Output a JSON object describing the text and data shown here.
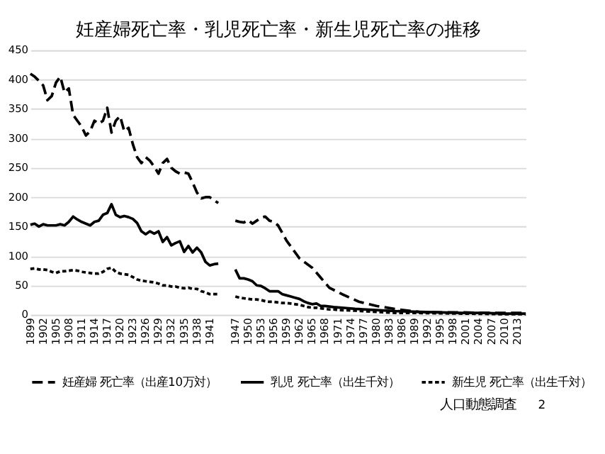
{
  "chart_data": {
    "type": "line",
    "title": "妊産婦死亡率・乳児死亡率・新生児死亡率の推移",
    "xlim": [
      1899,
      2015
    ],
    "xticks": [
      1899,
      1902,
      1905,
      1908,
      1911,
      1914,
      1917,
      1920,
      1923,
      1926,
      1929,
      1932,
      1935,
      1938,
      1941,
      1947,
      1950,
      1953,
      1956,
      1959,
      1962,
      1965,
      1968,
      1971,
      1974,
      1977,
      1980,
      1983,
      1986,
      1989,
      1992,
      1995,
      1998,
      2001,
      2004,
      2007,
      2010,
      2013
    ],
    "ylim": [
      0,
      450
    ],
    "yticks": [
      0,
      50,
      100,
      150,
      200,
      250,
      300,
      350,
      400,
      450
    ],
    "grid": "y",
    "legend": "bottom",
    "marker": "none",
    "series": [
      {
        "name": "妊産婦 死亡率（出産10万対）",
        "color": "#000000",
        "line_style": "dashed",
        "x": [
          1899,
          1900,
          1901,
          1902,
          1903,
          1904,
          1905,
          1906,
          1907,
          1908,
          1909,
          1910,
          1911,
          1912,
          1913,
          1914,
          1915,
          1916,
          1917,
          1918,
          1919,
          1920,
          1921,
          1922,
          1923,
          1924,
          1925,
          1926,
          1927,
          1928,
          1929,
          1930,
          1931,
          1932,
          1933,
          1934,
          1935,
          1936,
          1937,
          1938,
          1939,
          1940,
          1941,
          1942,
          1943,
          1944,
          1947,
          1948,
          1949,
          1950,
          1951,
          1952,
          1953,
          1954,
          1955,
          1956,
          1957,
          1959,
          1962,
          1965,
          1967,
          1969,
          1972,
          1976,
          1980,
          1985,
          1990,
          1995,
          2000,
          2005,
          2010,
          2015
        ],
        "values": [
          410,
          405,
          398,
          390,
          365,
          372,
          395,
          405,
          378,
          385,
          340,
          330,
          320,
          305,
          312,
          330,
          325,
          330,
          352,
          310,
          330,
          338,
          312,
          318,
          290,
          268,
          258,
          268,
          262,
          252,
          240,
          258,
          265,
          250,
          244,
          240,
          242,
          240,
          225,
          208,
          198,
          200,
          200,
          195,
          190,
          null,
          160,
          158,
          157,
          161,
          155,
          160,
          165,
          167,
          160,
          158,
          152,
          126,
          96,
          80,
          63,
          46,
          35,
          22,
          15,
          9,
          5,
          4,
          4,
          3,
          3,
          3
        ]
      },
      {
        "name": "乳児 死亡率（出生千対）",
        "color": "#000000",
        "line_style": "solid",
        "x": [
          1899,
          1900,
          1901,
          1902,
          1903,
          1904,
          1905,
          1906,
          1907,
          1908,
          1909,
          1910,
          1911,
          1912,
          1913,
          1914,
          1915,
          1916,
          1917,
          1918,
          1919,
          1920,
          1921,
          1922,
          1923,
          1924,
          1925,
          1926,
          1927,
          1928,
          1929,
          1930,
          1931,
          1932,
          1933,
          1934,
          1935,
          1936,
          1937,
          1938,
          1939,
          1940,
          1941,
          1942,
          1943,
          1944,
          1947,
          1948,
          1949,
          1950,
          1951,
          1952,
          1953,
          1954,
          1955,
          1956,
          1957,
          1958,
          1959,
          1960,
          1961,
          1962,
          1963,
          1964,
          1965,
          1966,
          1967,
          1968,
          1969,
          1970,
          1972,
          1975,
          1980,
          1985,
          1990,
          1995,
          2000,
          2005,
          2010,
          2015
        ],
        "values": [
          153,
          155,
          150,
          154,
          152,
          152,
          152,
          154,
          152,
          158,
          167,
          162,
          158,
          155,
          152,
          158,
          160,
          170,
          173,
          188,
          170,
          166,
          168,
          166,
          163,
          156,
          142,
          137,
          142,
          138,
          142,
          124,
          132,
          118,
          122,
          125,
          107,
          117,
          106,
          114,
          106,
          90,
          84,
          86,
          87,
          null,
          77,
          62,
          62,
          60,
          57,
          50,
          49,
          45,
          40,
          40,
          40,
          35,
          33,
          31,
          29,
          27,
          23,
          20,
          18,
          19,
          15,
          15,
          14,
          13,
          12,
          10,
          8,
          6,
          5,
          4,
          3,
          3,
          2,
          2
        ]
      },
      {
        "name": "新生児 死亡率（出生千対）",
        "color": "#000000",
        "line_style": "dotted",
        "x": [
          1899,
          1900,
          1901,
          1902,
          1903,
          1904,
          1905,
          1906,
          1907,
          1908,
          1909,
          1910,
          1911,
          1912,
          1913,
          1914,
          1915,
          1916,
          1917,
          1918,
          1919,
          1920,
          1921,
          1922,
          1923,
          1924,
          1925,
          1926,
          1927,
          1928,
          1929,
          1930,
          1931,
          1932,
          1933,
          1934,
          1935,
          1936,
          1937,
          1938,
          1939,
          1940,
          1941,
          1942,
          1943,
          1944,
          1947,
          1948,
          1949,
          1950,
          1951,
          1952,
          1953,
          1954,
          1955,
          1956,
          1957,
          1958,
          1959,
          1960,
          1961,
          1962,
          1963,
          1964,
          1965,
          1966,
          1967,
          1968,
          1969,
          1970,
          1971,
          1975,
          1980,
          1985,
          1990,
          2000,
          2010,
          2015
        ],
        "values": [
          78,
          79,
          77,
          77,
          76,
          73,
          71,
          74,
          74,
          75,
          76,
          75,
          73,
          72,
          71,
          70,
          70,
          73,
          78,
          80,
          73,
          70,
          69,
          68,
          64,
          60,
          58,
          57,
          56,
          55,
          53,
          50,
          50,
          48,
          48,
          46,
          45,
          46,
          44,
          44,
          40,
          38,
          35,
          35,
          35,
          null,
          31,
          29,
          28,
          27,
          26,
          26,
          25,
          23,
          22,
          22,
          21,
          20,
          20,
          19,
          18,
          17,
          15,
          13,
          12,
          12,
          11,
          10,
          9,
          9,
          8,
          7,
          5,
          3,
          3,
          2,
          1,
          1
        ]
      }
    ],
    "annotations": [
      "人口動態調査",
      "2"
    ]
  }
}
